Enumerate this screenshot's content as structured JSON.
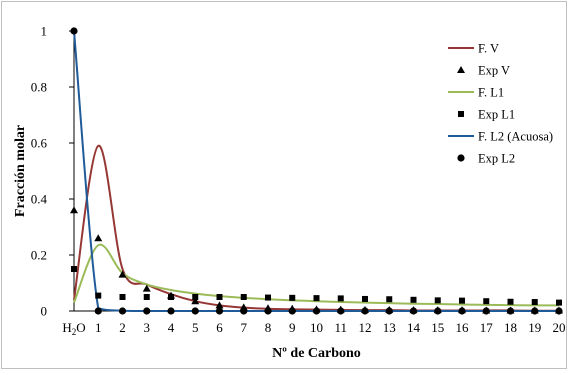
{
  "chart_data": {
    "type": "line",
    "xlabel": "Nº de Carbono",
    "ylabel": "Fracción molar",
    "ylim": [
      0,
      1
    ],
    "y_ticks": [
      "0",
      "0.2",
      "0.4",
      "0.6",
      "0.8",
      "1"
    ],
    "y_tick_values": [
      0,
      0.2,
      0.4,
      0.6,
      0.8,
      1
    ],
    "categories": [
      "H2O",
      "1",
      "2",
      "3",
      "4",
      "5",
      "6",
      "7",
      "8",
      "9",
      "10",
      "11",
      "12",
      "13",
      "14",
      "15",
      "16",
      "17",
      "18",
      "19",
      "20"
    ],
    "x_first_label": {
      "base": "H",
      "sub": "2",
      "rest": "O"
    },
    "grid": false,
    "legend_position": "top-right",
    "series": [
      {
        "name": "F. V",
        "kind": "line",
        "color": "#953735",
        "values": [
          0.04,
          0.59,
          0.15,
          0.095,
          0.06,
          0.035,
          0.02,
          0.012,
          0.008,
          0.006,
          0.005,
          0.004,
          0.003,
          0.003,
          0.002,
          0.002,
          0.002,
          0.002,
          0.002,
          0.001,
          0.001
        ]
      },
      {
        "name": "Exp V",
        "kind": "marker",
        "marker": "triangle",
        "color": "#000000",
        "values": [
          0.36,
          0.26,
          0.13,
          0.08,
          0.055,
          0.035,
          0.02,
          0.013,
          0.01,
          0.008,
          0.006,
          0.005,
          0.004,
          0.004,
          0.003,
          0.003,
          0.003,
          0.002,
          0.002,
          0.002,
          0.002
        ]
      },
      {
        "name": "F. L1",
        "kind": "line",
        "color": "#9bbb59",
        "values": [
          0.03,
          0.235,
          0.135,
          0.095,
          0.075,
          0.062,
          0.053,
          0.047,
          0.042,
          0.038,
          0.035,
          0.032,
          0.03,
          0.028,
          0.026,
          0.025,
          0.023,
          0.022,
          0.021,
          0.02,
          0.02
        ]
      },
      {
        "name": "Exp L1",
        "kind": "marker",
        "marker": "square",
        "color": "#000000",
        "values": [
          0.15,
          0.055,
          0.05,
          0.05,
          0.05,
          0.05,
          0.05,
          0.05,
          0.048,
          0.047,
          0.046,
          0.045,
          0.043,
          0.042,
          0.04,
          0.038,
          0.037,
          0.035,
          0.033,
          0.032,
          0.03
        ]
      },
      {
        "name": "F. L2 (Acuosa)",
        "kind": "line",
        "color": "#1f5b99",
        "values": [
          1.0,
          0.01,
          0.001,
          0.0,
          0.0,
          0.0,
          0.0,
          0.0,
          0.0,
          0.0,
          0.0,
          0.0,
          0.0,
          0.0,
          0.0,
          0.0,
          0.0,
          0.0,
          0.0,
          0.0,
          0.0
        ]
      },
      {
        "name": "Exp L2",
        "kind": "marker",
        "marker": "circle",
        "color": "#000000",
        "values": [
          1.0,
          0.0,
          0.0,
          0.0,
          0.0,
          0.0,
          0.0,
          0.0,
          0.0,
          0.0,
          0.0,
          0.0,
          0.0,
          0.0,
          0.0,
          0.0,
          0.0,
          0.0,
          0.0,
          0.0,
          0.0
        ]
      }
    ]
  }
}
